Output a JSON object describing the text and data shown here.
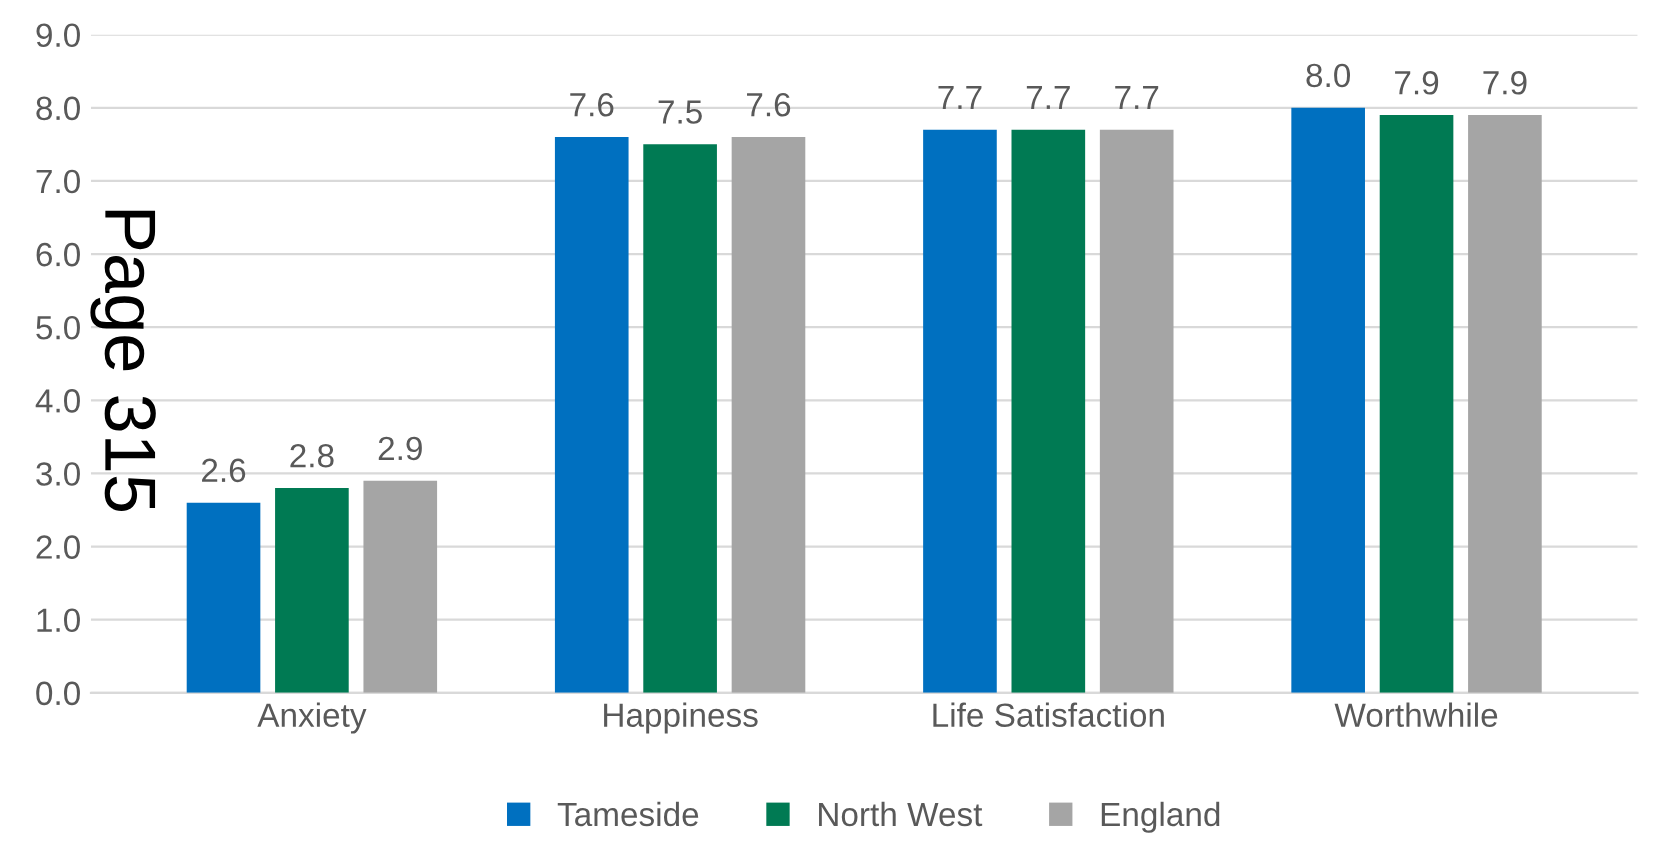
{
  "chart_data": {
    "type": "bar",
    "categories": [
      "Anxiety",
      "Happiness",
      "Life Satisfaction",
      "Worthwhile"
    ],
    "series": [
      {
        "name": "Tameside",
        "color": "#0070c0",
        "values": [
          2.6,
          7.6,
          7.7,
          8.0
        ],
        "value_labels": [
          "2.6",
          "7.6",
          "7.7",
          "8.0"
        ]
      },
      {
        "name": "North West",
        "color": "#007a53",
        "values": [
          2.8,
          7.5,
          7.7,
          7.9
        ],
        "value_labels": [
          "2.8",
          "7.5",
          "7.7",
          "7.9"
        ]
      },
      {
        "name": "England",
        "color": "#a5a5a5",
        "values": [
          2.9,
          7.6,
          7.7,
          7.9
        ],
        "value_labels": [
          "2.9",
          "7.6",
          "7.7",
          "7.9"
        ]
      }
    ],
    "ylim": [
      0,
      9
    ],
    "yticks": [
      {
        "value": 0,
        "label": "0.0"
      },
      {
        "value": 1,
        "label": "1.0"
      },
      {
        "value": 2,
        "label": "2.0"
      },
      {
        "value": 3,
        "label": "3.0"
      },
      {
        "value": 4,
        "label": "4.0"
      },
      {
        "value": 5,
        "label": "5.0"
      },
      {
        "value": 6,
        "label": "6.0"
      },
      {
        "value": 7,
        "label": "7.0"
      },
      {
        "value": 8,
        "label": "8.0"
      },
      {
        "value": 9,
        "label": "9.0"
      }
    ],
    "grid": "y",
    "legend": "bottom",
    "annotations": [
      "Page 315"
    ]
  }
}
